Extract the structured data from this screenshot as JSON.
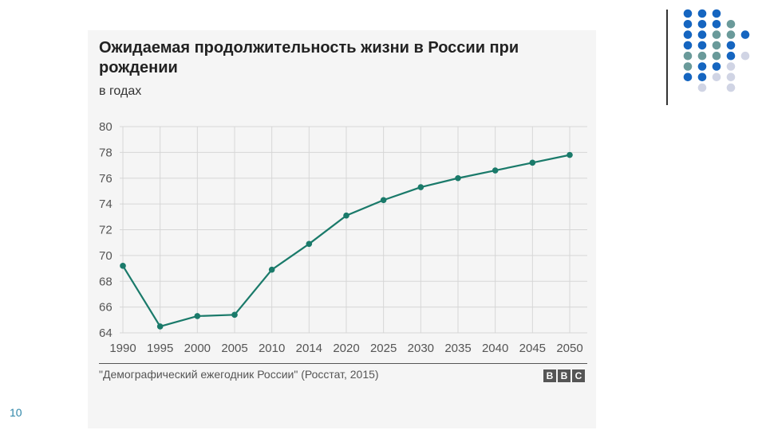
{
  "slide_number": "10",
  "chart_data": {
    "type": "line",
    "title": "Ожидаемая продолжительность жизни в России при рождении",
    "subtitle": "в годах",
    "categories": [
      "1990",
      "1995",
      "2000",
      "2005",
      "2010",
      "2014",
      "2020",
      "2025",
      "2030",
      "2035",
      "2040",
      "2045",
      "2050"
    ],
    "values": [
      69.2,
      64.5,
      65.3,
      65.4,
      68.9,
      70.9,
      73.1,
      74.3,
      75.3,
      76.0,
      76.6,
      77.2,
      77.8
    ],
    "yticks": [
      "64",
      "66",
      "68",
      "70",
      "72",
      "74",
      "76",
      "78",
      "80"
    ],
    "ylim": [
      64,
      80
    ],
    "grid": true,
    "legend": "none",
    "line_color": "#1a7a6a",
    "source": "\"Демографический ежегодник России\" (Росстат, 2015)",
    "logo": [
      "B",
      "B",
      "C"
    ]
  },
  "decoration": {
    "dot_colors": [
      "#1565c0",
      "#6a9a9a",
      "#d0d4e4"
    ]
  }
}
